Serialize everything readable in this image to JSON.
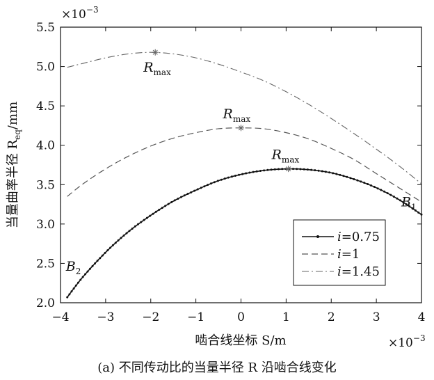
{
  "chart_data": {
    "type": "line",
    "x_scale_label": "×10",
    "x_scale_exp": "−3",
    "y_scale_label": "×10",
    "y_scale_exp": "−3",
    "xlabel": "啮合线坐标 S/m",
    "ylabel": "当量曲率半径 R",
    "ylabel_sub": "eq",
    "ylabel_unit": "/mm",
    "xlim": [
      -4,
      4
    ],
    "ylim": [
      2.0,
      5.5
    ],
    "x_ticks": [
      -4,
      -3,
      -2,
      -1,
      0,
      1,
      2,
      3,
      4
    ],
    "x_tick_labels": [
      "−4",
      "−3",
      "−2",
      "−1",
      "0",
      "1",
      "2",
      "3",
      "4"
    ],
    "y_ticks": [
      2.0,
      2.5,
      3.0,
      3.5,
      4.0,
      4.5,
      5.0,
      5.5
    ],
    "y_tick_labels": [
      "2.0",
      "2.5",
      "3.0",
      "3.5",
      "4.0",
      "4.5",
      "5.0",
      "5.5"
    ],
    "grid": false,
    "legend_position": "bottom-right",
    "series": [
      {
        "name": "i=0.75",
        "legend_var": "i",
        "legend_val": "=0.75",
        "style": "solid-dots",
        "color": "#111111",
        "x": [
          -3.85,
          -3.5,
          -3.0,
          -2.5,
          -2.0,
          -1.5,
          -1.0,
          -0.5,
          0.0,
          0.5,
          1.0,
          1.5,
          2.0,
          2.5,
          3.0,
          3.5,
          4.0
        ],
        "y": [
          2.07,
          2.33,
          2.64,
          2.9,
          3.11,
          3.29,
          3.43,
          3.55,
          3.63,
          3.68,
          3.7,
          3.69,
          3.65,
          3.57,
          3.46,
          3.31,
          3.12
        ]
      },
      {
        "name": "i=1",
        "legend_var": "i",
        "legend_val": "=1",
        "style": "dashed",
        "color": "#555555",
        "x": [
          -3.85,
          -3.5,
          -3.0,
          -2.5,
          -2.0,
          -1.5,
          -1.0,
          -0.5,
          0.0,
          0.5,
          1.0,
          1.5,
          2.0,
          2.5,
          3.0,
          3.5,
          4.0
        ],
        "y": [
          3.35,
          3.51,
          3.7,
          3.86,
          3.99,
          4.09,
          4.16,
          4.21,
          4.22,
          4.21,
          4.16,
          4.08,
          3.96,
          3.82,
          3.64,
          3.46,
          3.28
        ]
      },
      {
        "name": "i=1.45",
        "legend_var": "i",
        "legend_val": "=1.45",
        "style": "dashdot",
        "color": "#666666",
        "x": [
          -3.85,
          -3.5,
          -3.0,
          -2.5,
          -2.0,
          -1.5,
          -1.0,
          -0.5,
          0.0,
          0.5,
          1.0,
          1.5,
          2.0,
          2.5,
          3.0,
          3.5,
          4.0
        ],
        "y": [
          4.99,
          5.04,
          5.11,
          5.16,
          5.18,
          5.16,
          5.11,
          5.03,
          4.93,
          4.82,
          4.68,
          4.52,
          4.34,
          4.15,
          3.95,
          3.74,
          3.51
        ]
      }
    ],
    "max_markers": [
      {
        "label": "R",
        "sub": "max",
        "x": -1.9,
        "y": 5.18,
        "series": "i=1.45"
      },
      {
        "label": "R",
        "sub": "max",
        "x": 0.0,
        "y": 4.22,
        "series": "i=1"
      },
      {
        "label": "R",
        "sub": "max",
        "x": 1.05,
        "y": 3.7,
        "series": "i=0.75"
      }
    ],
    "point_labels": [
      {
        "label": "B",
        "sub": "2",
        "x": -3.85,
        "y": 2.07
      },
      {
        "label": "B",
        "sub": "1",
        "x": 4.0,
        "y": 3.12
      }
    ]
  },
  "caption": "(a) 不同传动比的当量半径 R 沿啮合线变化"
}
